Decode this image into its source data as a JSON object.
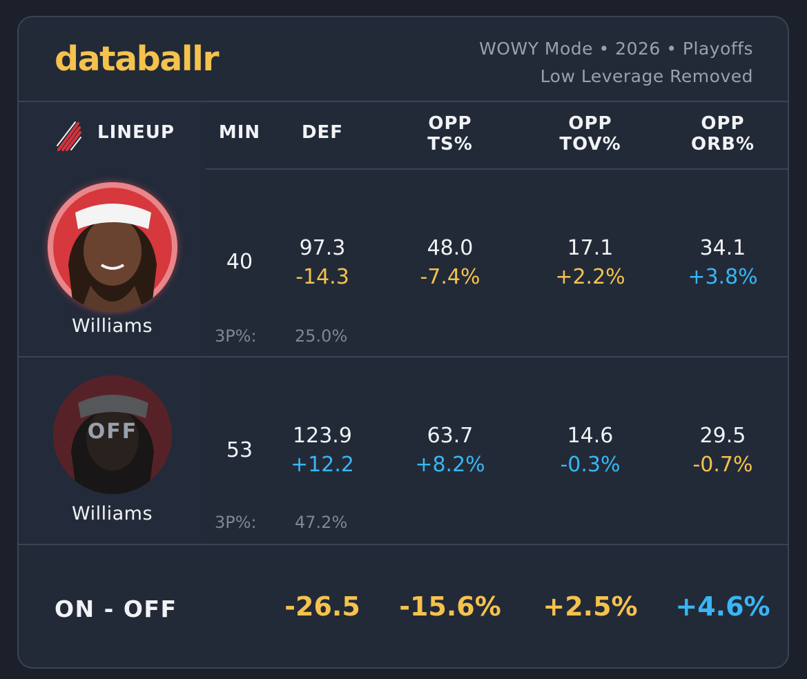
{
  "brand": "databallr",
  "meta": {
    "line1": "WOWY Mode • 2026 • Playoffs",
    "line2": "Low Leverage Removed"
  },
  "columns": {
    "lineup": "LINEUP",
    "min": "MIN",
    "def": "DEF",
    "opp_ts": [
      "OPP",
      "TS%"
    ],
    "opp_tov": [
      "OPP",
      "TOV%"
    ],
    "opp_orb": [
      "OPP",
      "ORB%"
    ]
  },
  "rows": [
    {
      "player": "Williams",
      "status": "",
      "min": "40",
      "def": {
        "value": "97.3",
        "delta": "-14.3"
      },
      "opp_ts": {
        "value": "48.0",
        "delta": "-7.4%"
      },
      "opp_tov": {
        "value": "17.1",
        "delta": "+2.2%"
      },
      "opp_orb": {
        "value": "34.1",
        "delta": "+3.8%"
      },
      "three_pct_label": "3P%:",
      "three_pct": "25.0%"
    },
    {
      "player": "Williams",
      "status": "OFF",
      "min": "53",
      "def": {
        "value": "123.9",
        "delta": "+12.2"
      },
      "opp_ts": {
        "value": "63.7",
        "delta": "+8.2%"
      },
      "opp_tov": {
        "value": "14.6",
        "delta": "-0.3%"
      },
      "opp_orb": {
        "value": "29.5",
        "delta": "-0.7%"
      },
      "three_pct_label": "3P%:",
      "three_pct": "47.2%"
    }
  ],
  "on_off": {
    "label": "ON - OFF",
    "def": "-26.5",
    "opp_ts": "-15.6%",
    "opp_tov": "+2.5%",
    "opp_orb": "+4.6%"
  },
  "colors": {
    "gold": "#f5c24c",
    "blue": "#38b6f5",
    "team_red": "#d8323a"
  },
  "icons": {
    "team_logo": "pinwheel-logo-icon"
  }
}
